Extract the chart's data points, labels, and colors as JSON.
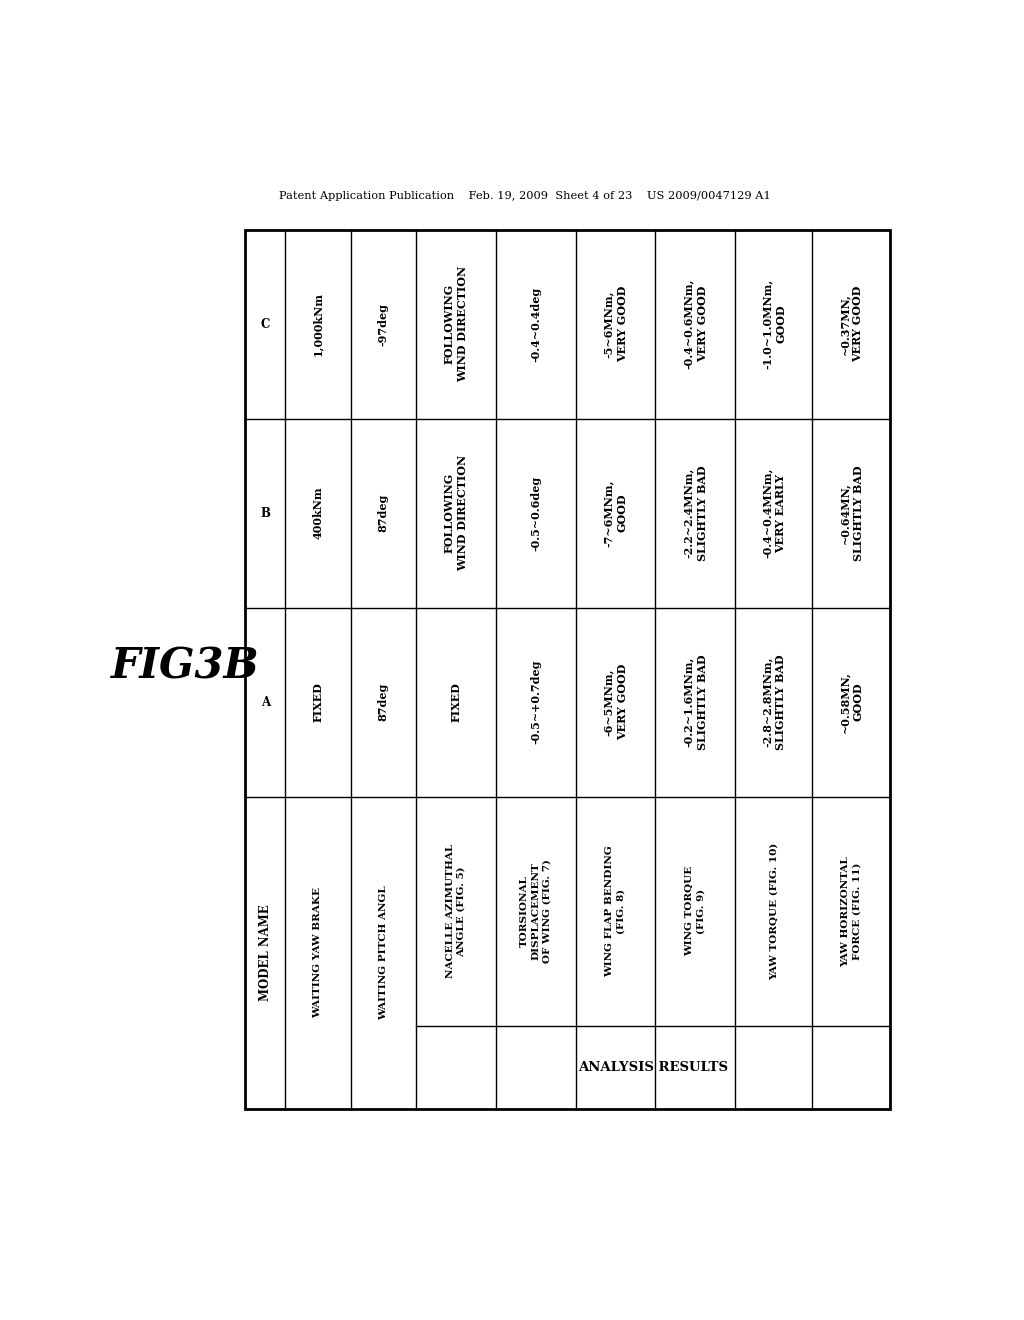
{
  "header_text": "Patent Application Publication    Feb. 19, 2009  Sheet 4 of 23    US 2009/0047129 A1",
  "fig_label": "FIG3B",
  "background_color": "#ffffff",
  "table": {
    "row_headers": [
      "MODEL NAME",
      "A",
      "B",
      "C"
    ],
    "cols": [
      {
        "label": "WAITING YAW BRAKE",
        "A": "FIXED",
        "B": "400kNm",
        "C": "1,000kNm",
        "is_analysis": false
      },
      {
        "label": "WAITING PITCH ANGL",
        "A": "87deg",
        "B": "87deg",
        "C": "-97deg",
        "is_analysis": false
      },
      {
        "label": "NACELLE AZIMUTHAL\nANGLE (FIG. 5)",
        "A": "FIXED",
        "B": "FOLLOWING\nWIND DIRECTION",
        "C": "FOLLOWING\nWIND DIRECTION",
        "is_analysis": true
      },
      {
        "label": "TORSIONAL\nDISPLACEMENT\nOF WING (FIG. 7)",
        "A": "-0.5~+0.7deg",
        "B": "-0.5~0.6deg",
        "C": "-0.4~0.4deg",
        "is_analysis": true
      },
      {
        "label": "WING FLAP BENDING\n(FIG. 8)",
        "A": "-6~5MNm,\nVERY GOOD",
        "B": "-7~6MNm,\nGOOD",
        "C": "-5~6MNm,\nVERY GOOD",
        "is_analysis": true
      },
      {
        "label": "WING TORQUE\n(FIG. 9)",
        "A": "-0.2~1.6MNm,\nSLIGHTLY BAD",
        "B": "-2.2~2.4MNm,\nSLIGHTLY BAD",
        "C": "-0.4~0.6MNm,\nVERY GOOD",
        "is_analysis": true
      },
      {
        "label": "YAW TORQUE (FIG. 10)",
        "A": "-2.8~2.8MNm,\nSLIGHTLY BAD",
        "B": "-0.4~0.4MNm,\nVERY EARLY",
        "C": "-1.0~1.0MNm,\nGOOD",
        "is_analysis": true
      },
      {
        "label": "YAW HORIZONTAL\nFORCE (FIG. 11)",
        "A": "~0.58MN,\nGOOD",
        "B": "~0.64MN,\nSLIGHTLY BAD",
        "C": "~0.37MN,\nVERY GOOD",
        "is_analysis": true
      }
    ],
    "analysis_label": "ANALYSIS RESULTS"
  }
}
